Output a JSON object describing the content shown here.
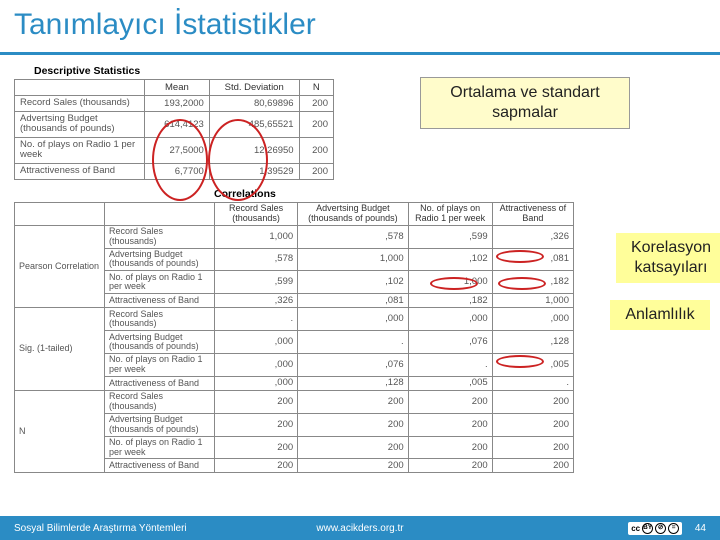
{
  "title": "Tanımlayıcı İstatistikler",
  "callouts": {
    "mean_std": "Ortalama ve standart sapmalar",
    "corr_coef": "Korelasyon katsayıları",
    "sig": "Anlamlılık"
  },
  "desc": {
    "heading": "Descriptive Statistics",
    "cols": {
      "mean": "Mean",
      "std": "Std. Deviation",
      "n": "N"
    },
    "rows": [
      {
        "label": "Record Sales (thousands)",
        "mean": "193,2000",
        "std": "80,69896",
        "n": "200"
      },
      {
        "label": "Advertsing Budget (thousands of pounds)",
        "mean": "614,4123",
        "std": "485,65521",
        "n": "200"
      },
      {
        "label": "No. of plays on Radio 1 per week",
        "mean": "27,5000",
        "std": "12,26950",
        "n": "200"
      },
      {
        "label": "Attractiveness of Band",
        "mean": "6,7700",
        "std": "1,39529",
        "n": "200"
      }
    ]
  },
  "corr": {
    "heading": "Correlations",
    "col_headers": [
      "Record Sales (thousands)",
      "Advertsing Budget (thousands of pounds)",
      "No. of plays on Radio 1 per week",
      "Attractiveness of Band"
    ],
    "groups": [
      {
        "label": "Pearson Correlation",
        "rows": [
          {
            "label": "Record Sales (thousands)",
            "vals": [
              "1,000",
              ",578",
              ",599",
              ",326"
            ]
          },
          {
            "label": "Advertsing Budget (thousands of pounds)",
            "vals": [
              ",578",
              "1,000",
              ",102",
              ",081"
            ]
          },
          {
            "label": "No. of plays on Radio 1 per week",
            "vals": [
              ",599",
              ",102",
              "1,000",
              ",182"
            ]
          },
          {
            "label": "Attractiveness of Band",
            "vals": [
              ",326",
              ",081",
              ",182",
              "1,000"
            ]
          }
        ]
      },
      {
        "label": "Sig. (1-tailed)",
        "rows": [
          {
            "label": "Record Sales (thousands)",
            "vals": [
              ".",
              ",000",
              ",000",
              ",000"
            ]
          },
          {
            "label": "Advertsing Budget (thousands of pounds)",
            "vals": [
              ",000",
              ".",
              ",076",
              ",128"
            ]
          },
          {
            "label": "No. of plays on Radio 1 per week",
            "vals": [
              ",000",
              ",076",
              ".",
              ",005"
            ]
          },
          {
            "label": "Attractiveness of Band",
            "vals": [
              ",000",
              ",128",
              ",005",
              "."
            ]
          }
        ]
      },
      {
        "label": "N",
        "rows": [
          {
            "label": "Record Sales (thousands)",
            "vals": [
              "200",
              "200",
              "200",
              "200"
            ]
          },
          {
            "label": "Advertsing Budget (thousands of pounds)",
            "vals": [
              "200",
              "200",
              "200",
              "200"
            ]
          },
          {
            "label": "No. of plays on Radio 1 per week",
            "vals": [
              "200",
              "200",
              "200",
              "200"
            ]
          },
          {
            "label": "Attractiveness of Band",
            "vals": [
              "200",
              "200",
              "200",
              "200"
            ]
          }
        ]
      }
    ]
  },
  "footer": {
    "left": "Sosyal Bilimlerde Araştırma Yöntemleri",
    "mid": "www.acikders.org.tr",
    "page": "44",
    "cc": {
      "label": "cc",
      "icons": [
        "BY",
        "⊘",
        "="
      ]
    }
  },
  "style": {
    "brand_color": "#2b8cc4",
    "highlight_bg": "#fffccb",
    "ellipse_color": "#cc2222"
  }
}
